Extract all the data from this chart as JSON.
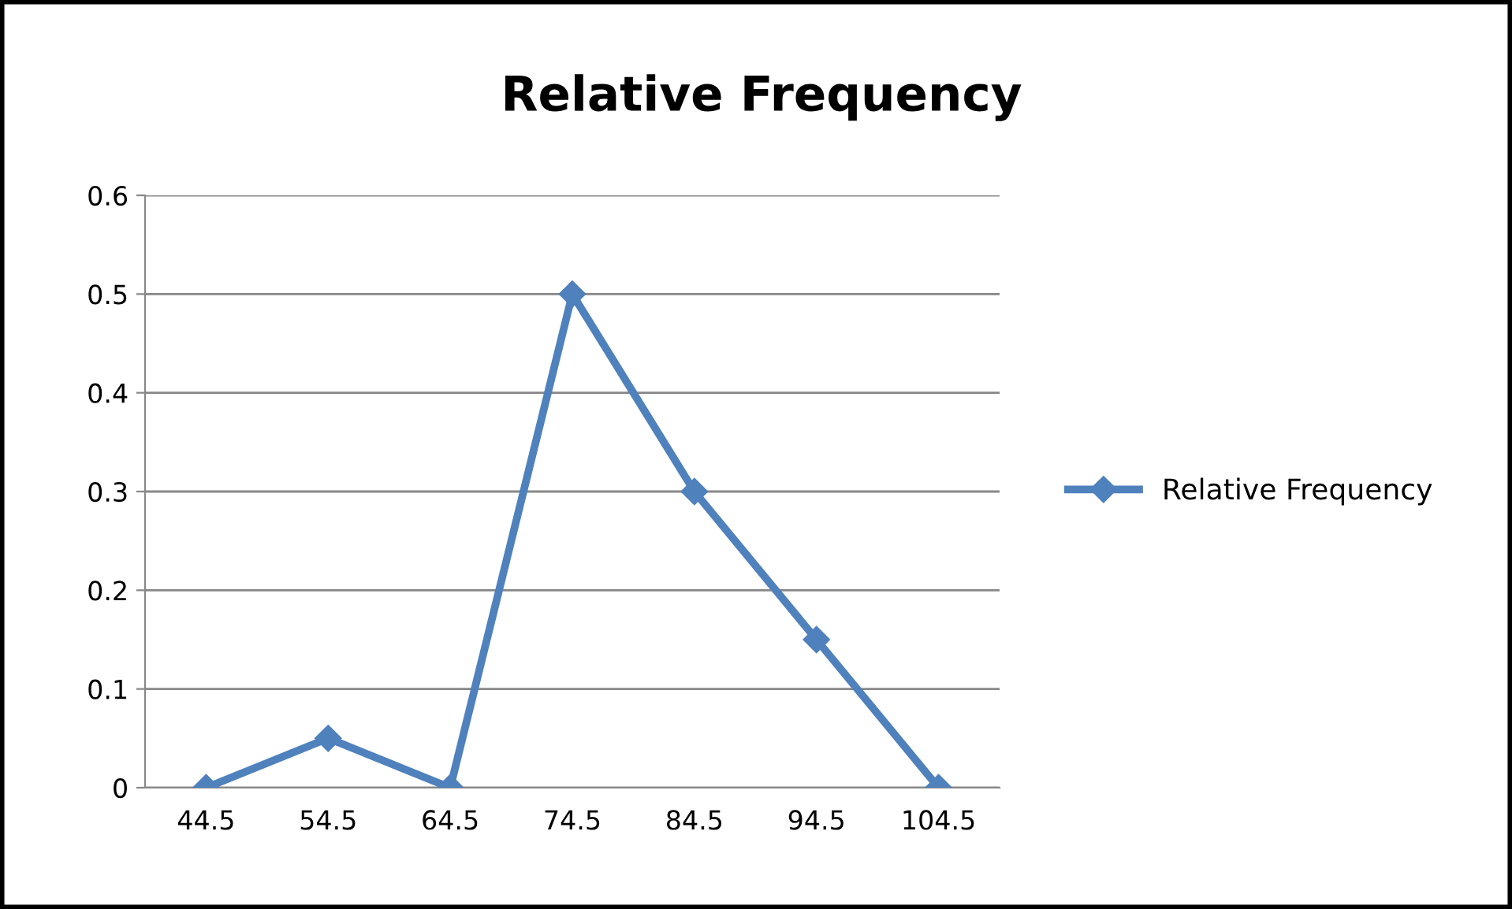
{
  "chart_data": {
    "type": "line",
    "title": "Relative Frequency",
    "categories": [
      "44.5",
      "54.5",
      "64.5",
      "74.5",
      "84.5",
      "94.5",
      "104.5"
    ],
    "series": [
      {
        "name": "Relative Frequency",
        "color": "#4f81bd",
        "values": [
          0,
          0.05,
          0,
          0.5,
          0.3,
          0.15,
          0
        ]
      }
    ],
    "ylim": [
      0,
      0.6
    ],
    "yticks": [
      0,
      0.1,
      0.2,
      0.3,
      0.4,
      0.5,
      0.6
    ],
    "grid": "y",
    "legend": "right",
    "marker": "diamond",
    "line_style": "solid"
  }
}
